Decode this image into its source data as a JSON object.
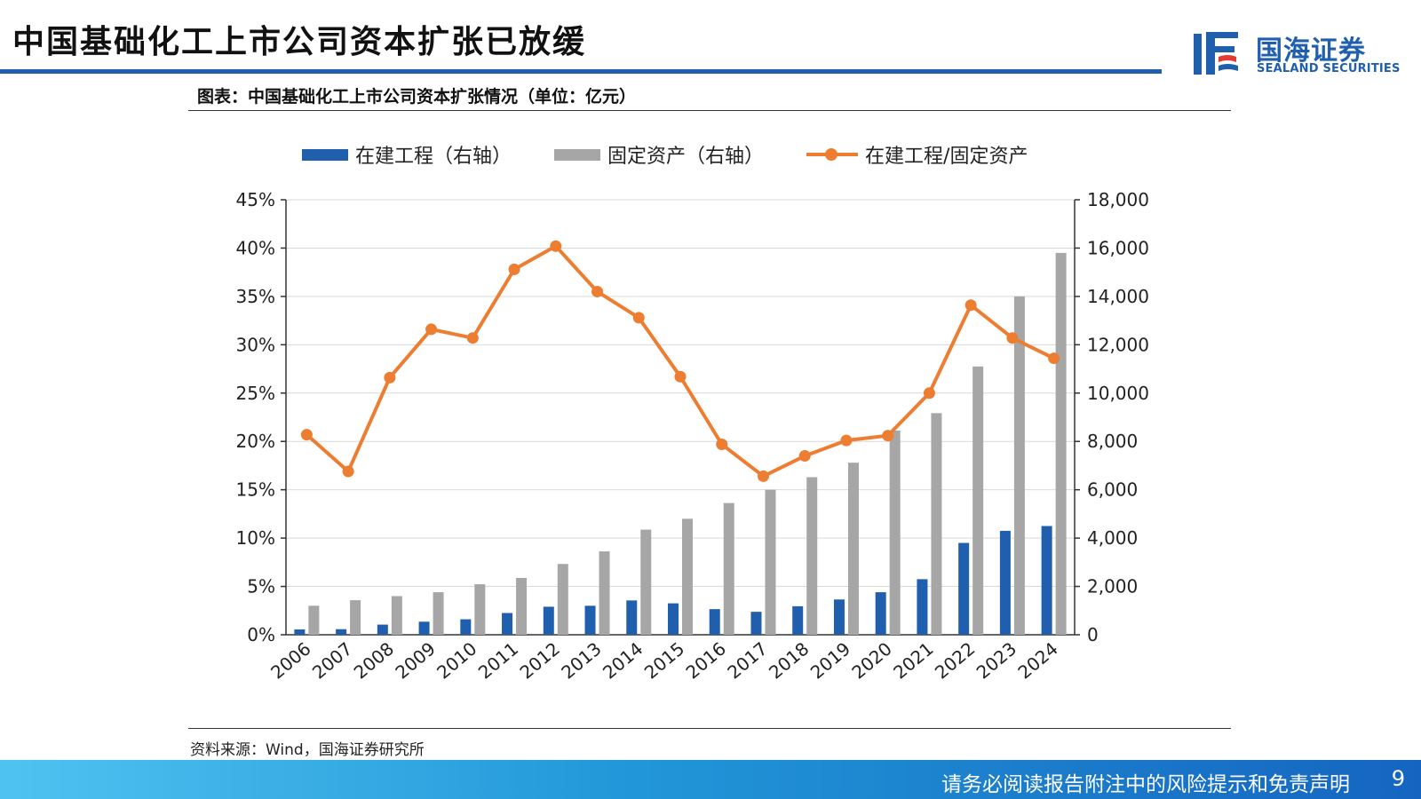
{
  "page": {
    "title": "中国基础化工上市公司资本扩张已放缓",
    "figure_caption": "图表：中国基础化工上市公司资本扩张情况（单位：亿元）",
    "source": "资料来源：Wind，国海证券研究所",
    "footer_disclaimer": "请务必阅读报告附注中的风险提示和免责声明",
    "page_number": "9"
  },
  "logo": {
    "name_cn": "国海证券",
    "name_en": "SEALAND SECURITIES",
    "color": "#1f5fae"
  },
  "colors": {
    "bar_construction": "#1f5fae",
    "bar_fixed_assets": "#a6a6a6",
    "line_ratio": "#ed7d31",
    "accent": "#1f5fae"
  },
  "chart_data": {
    "type": "bar",
    "categories": [
      "2006",
      "2007",
      "2008",
      "2009",
      "2010",
      "2011",
      "2012",
      "2013",
      "2014",
      "2015",
      "2016",
      "2017",
      "2018",
      "2019",
      "2020",
      "2021",
      "2022",
      "2023",
      "2024"
    ],
    "series": [
      {
        "name": "在建工程（右轴）",
        "type": "bar",
        "axis": "right",
        "values": [
          220,
          230,
          420,
          540,
          640,
          900,
          1160,
          1200,
          1420,
          1300,
          1060,
          950,
          1180,
          1460,
          1760,
          2300,
          3800,
          4300,
          4500
        ]
      },
      {
        "name": "固定资产（右轴）",
        "type": "bar",
        "axis": "right",
        "values": [
          1200,
          1430,
          1600,
          1760,
          2090,
          2350,
          2930,
          3450,
          4350,
          4800,
          5450,
          6000,
          6520,
          7120,
          8450,
          9170,
          11100,
          14000,
          15800
        ]
      },
      {
        "name": "在建工程/固定资产",
        "type": "line",
        "axis": "left",
        "values": [
          0.207,
          0.169,
          0.266,
          0.316,
          0.307,
          0.378,
          0.402,
          0.355,
          0.328,
          0.267,
          0.197,
          0.164,
          0.185,
          0.201,
          0.206,
          0.25,
          0.341,
          0.307,
          0.286
        ]
      }
    ],
    "y_left": {
      "ticks": [
        "0%",
        "5%",
        "10%",
        "15%",
        "20%",
        "25%",
        "30%",
        "35%",
        "40%",
        "45%"
      ],
      "ylim": [
        0,
        0.45
      ]
    },
    "y_right": {
      "ticks": [
        "0",
        "2,000",
        "4,000",
        "6,000",
        "8,000",
        "10,000",
        "12,000",
        "14,000",
        "16,000",
        "18,000"
      ],
      "ylim": [
        0,
        18000
      ]
    },
    "grid": true,
    "legend_position": "top"
  }
}
